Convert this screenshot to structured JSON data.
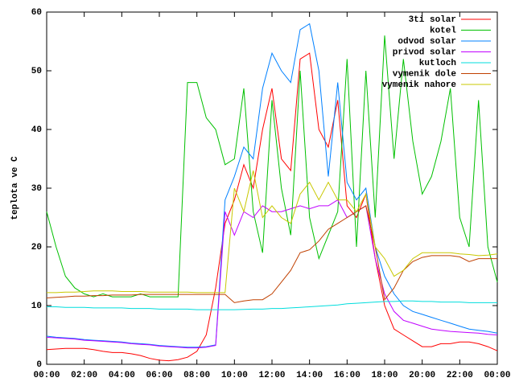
{
  "chart_data": {
    "type": "line",
    "ylabel": "teplota ve C",
    "x": [
      0,
      0.5,
      1,
      1.5,
      2,
      2.5,
      3,
      3.5,
      4,
      4.5,
      5,
      5.5,
      6,
      6.5,
      7,
      7.5,
      8,
      8.5,
      9,
      9.5,
      10,
      10.5,
      11,
      11.5,
      12,
      12.5,
      13,
      13.5,
      14,
      14.5,
      15,
      15.5,
      16,
      16.5,
      17,
      17.5,
      18,
      18.5,
      19,
      19.5,
      20,
      20.5,
      21,
      21.5,
      22,
      22.5,
      23,
      23.5,
      24
    ],
    "xlim": [
      0,
      24
    ],
    "xticks": [
      {
        "value": 0,
        "label": "00:00"
      },
      {
        "value": 2,
        "label": "02:00"
      },
      {
        "value": 4,
        "label": "04:00"
      },
      {
        "value": 6,
        "label": "06:00"
      },
      {
        "value": 8,
        "label": "08:00"
      },
      {
        "value": 10,
        "label": "10:00"
      },
      {
        "value": 12,
        "label": "12:00"
      },
      {
        "value": 14,
        "label": "14:00"
      },
      {
        "value": 16,
        "label": "16:00"
      },
      {
        "value": 18,
        "label": "18:00"
      },
      {
        "value": 20,
        "label": "20:00"
      },
      {
        "value": 22,
        "label": "22:00"
      },
      {
        "value": 24,
        "label": "00:00"
      }
    ],
    "ylim": [
      0,
      60
    ],
    "yticks": [
      0,
      10,
      20,
      30,
      40,
      50,
      60
    ],
    "legend": "top-right",
    "series": [
      {
        "name": "3ti solar",
        "color": "#ff0000",
        "values": [
          2.5,
          2.6,
          2.7,
          2.7,
          2.7,
          2.5,
          2.2,
          2,
          2,
          1.8,
          1.5,
          1,
          0.7,
          0.6,
          0.8,
          1.2,
          2.2,
          5,
          13,
          24,
          28,
          34,
          30,
          40,
          47,
          35,
          33,
          52,
          53,
          40,
          37,
          45,
          27,
          25,
          29,
          18,
          10,
          6,
          5,
          4,
          3,
          3,
          3.5,
          3.5,
          3.8,
          3.8,
          3.5,
          3,
          2.3
        ]
      },
      {
        "name": "kotel",
        "color": "#00c000",
        "values": [
          26,
          20,
          15,
          13,
          12,
          11.5,
          12,
          11.5,
          11.5,
          11.5,
          12,
          11.5,
          11.5,
          11.5,
          11.5,
          48,
          48,
          42,
          40,
          34,
          35,
          47,
          26,
          19,
          45,
          30,
          22,
          50,
          25,
          18,
          22,
          26,
          52,
          20,
          50,
          25,
          56,
          35,
          52,
          38,
          29,
          32,
          38,
          47,
          25,
          20,
          45,
          20,
          14
        ]
      },
      {
        "name": "odvod solar",
        "color": "#0080ff",
        "values": [
          4.8,
          4.6,
          4.5,
          4.4,
          4.2,
          4.1,
          4,
          3.9,
          3.8,
          3.6,
          3.5,
          3.4,
          3.2,
          3.1,
          3,
          2.9,
          2.9,
          3,
          3.3,
          28,
          32,
          37,
          35,
          47,
          53,
          50,
          48,
          57,
          58,
          50,
          32,
          48,
          31,
          28,
          30,
          20,
          15,
          12,
          10,
          9,
          8.5,
          8,
          7.5,
          7,
          6.5,
          6,
          5.8,
          5.6,
          5.3
        ]
      },
      {
        "name": "privod solar",
        "color": "#c000ff",
        "values": [
          4.6,
          4.5,
          4.4,
          4.3,
          4.1,
          4,
          3.9,
          3.8,
          3.7,
          3.5,
          3.4,
          3.3,
          3.1,
          3,
          2.9,
          2.8,
          2.8,
          2.9,
          3.2,
          26,
          22,
          26,
          25,
          27,
          26,
          26,
          26.5,
          27,
          26.5,
          27,
          27,
          28,
          25,
          26,
          27,
          18,
          12,
          9,
          7.5,
          7,
          6.5,
          6,
          5.8,
          5.6,
          5.5,
          5.4,
          5.3,
          5.1,
          5
        ]
      },
      {
        "name": "kutloch",
        "color": "#00dddd",
        "values": [
          9.8,
          9.8,
          9.7,
          9.7,
          9.7,
          9.6,
          9.6,
          9.6,
          9.6,
          9.5,
          9.5,
          9.5,
          9.4,
          9.4,
          9.4,
          9.4,
          9.3,
          9.3,
          9.3,
          9.3,
          9.3,
          9.35,
          9.4,
          9.4,
          9.5,
          9.5,
          9.6,
          9.7,
          9.8,
          9.9,
          10,
          10.1,
          10.3,
          10.4,
          10.5,
          10.6,
          10.7,
          10.7,
          10.8,
          10.8,
          10.7,
          10.7,
          10.6,
          10.6,
          10.6,
          10.5,
          10.5,
          10.5,
          10.5
        ]
      },
      {
        "name": "vymenik dole",
        "color": "#c04000",
        "values": [
          11.3,
          11.4,
          11.5,
          11.6,
          11.6,
          11.7,
          11.7,
          11.8,
          11.8,
          11.8,
          11.9,
          11.9,
          11.9,
          11.9,
          11.9,
          11.9,
          11.9,
          11.9,
          11.9,
          11.9,
          10.5,
          10.8,
          11,
          11,
          12,
          14,
          16,
          19,
          19.5,
          21,
          23,
          24,
          25,
          26,
          27,
          20,
          11,
          13,
          16,
          17.5,
          18.2,
          18.5,
          18.5,
          18.5,
          18.3,
          17.5,
          18,
          18,
          18
        ]
      },
      {
        "name": "vymenik nahore",
        "color": "#c8c800",
        "values": [
          12.2,
          12.2,
          12.3,
          12.3,
          12.4,
          12.5,
          12.5,
          12.5,
          12.4,
          12.4,
          12.4,
          12.3,
          12.3,
          12.3,
          12.3,
          12.3,
          12.2,
          12.2,
          12.2,
          12.2,
          30,
          26,
          33,
          25,
          27,
          25,
          24,
          29,
          31,
          28,
          31,
          28,
          28,
          26,
          29,
          20,
          18,
          15,
          16,
          18,
          19,
          19,
          19,
          19,
          18.8,
          18.7,
          18.5,
          18.6,
          18.8
        ]
      }
    ]
  }
}
